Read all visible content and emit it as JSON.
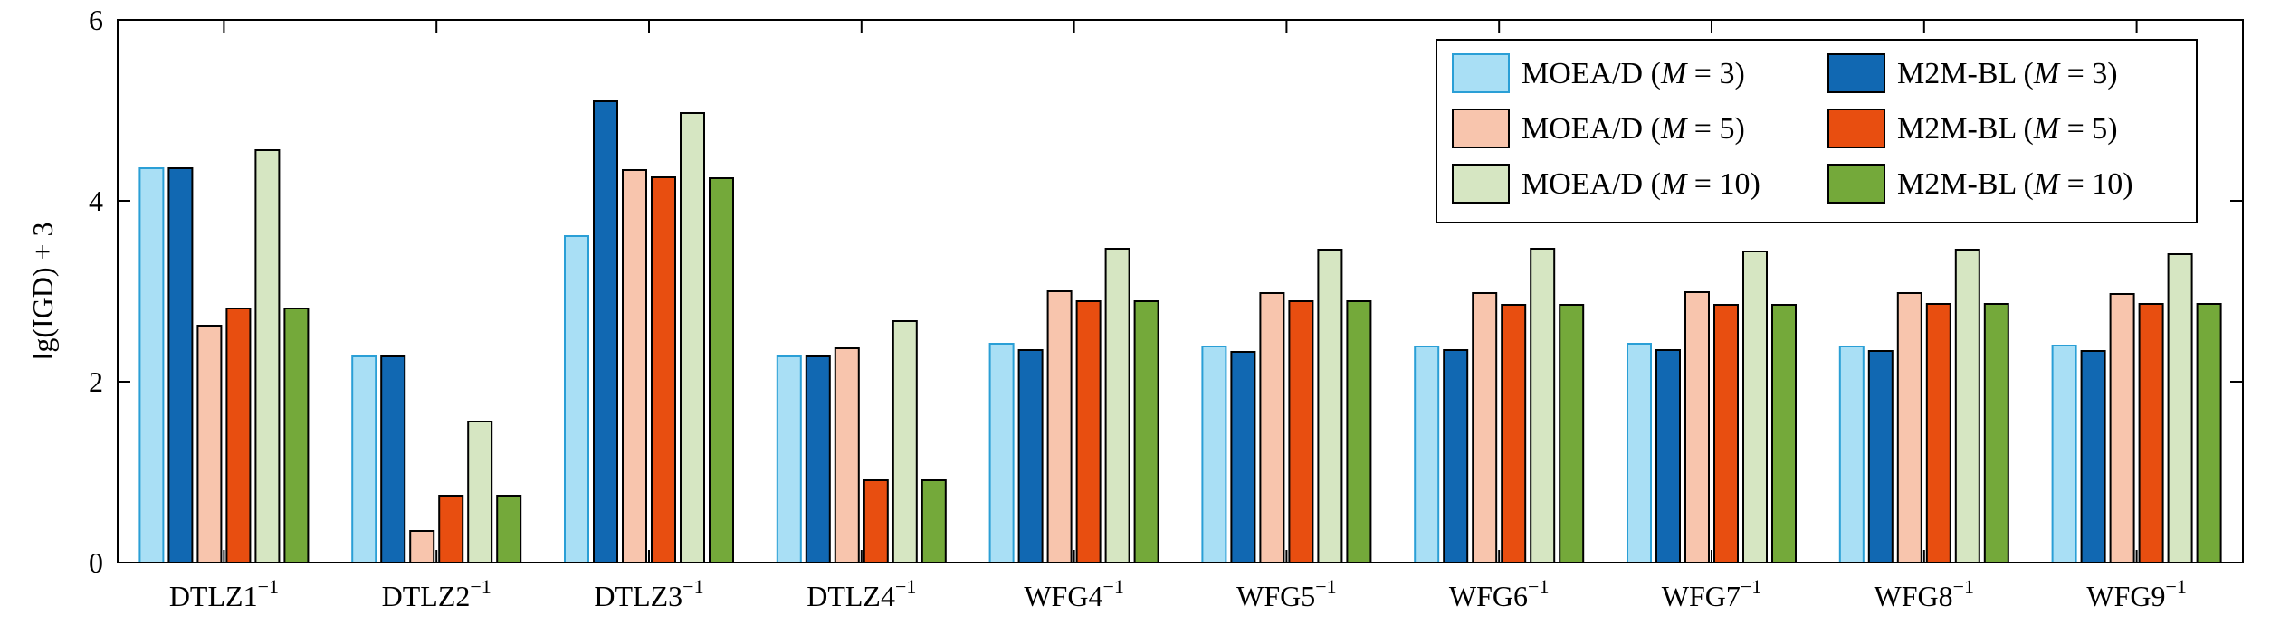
{
  "chart_data": {
    "type": "bar",
    "ylabel": "lg(IGD) + 3",
    "ylim": [
      0,
      6
    ],
    "yticks": [
      0,
      2,
      4,
      6
    ],
    "grid": false,
    "legend_position": "top-right",
    "categories": [
      {
        "base": "DTLZ1",
        "sup": "−1"
      },
      {
        "base": "DTLZ2",
        "sup": "−1"
      },
      {
        "base": "DTLZ3",
        "sup": "−1"
      },
      {
        "base": "DTLZ4",
        "sup": "−1"
      },
      {
        "base": "WFG4",
        "sup": "−1"
      },
      {
        "base": "WFG5",
        "sup": "−1"
      },
      {
        "base": "WFG6",
        "sup": "−1"
      },
      {
        "base": "WFG7",
        "sup": "−1"
      },
      {
        "base": "WFG8",
        "sup": "−1"
      },
      {
        "base": "WFG9",
        "sup": "−1"
      }
    ],
    "series": [
      {
        "name": "MOEA/D (M = 3)",
        "label_parts": [
          "MOEA/D (",
          "M",
          " = 3)"
        ],
        "color": "#a9dff5",
        "stroke": "#2a9fd6",
        "values": [
          4.36,
          2.28,
          3.61,
          2.28,
          2.42,
          2.39,
          2.39,
          2.42,
          2.39,
          2.4
        ]
      },
      {
        "name": "M2M-BL (M = 3)",
        "label_parts": [
          "M2M-BL (",
          "M",
          " = 3)"
        ],
        "color": "#1168b2",
        "stroke": "#000000",
        "values": [
          4.36,
          2.28,
          5.1,
          2.28,
          2.35,
          2.33,
          2.35,
          2.35,
          2.34,
          2.34
        ]
      },
      {
        "name": "MOEA/D (M = 5)",
        "label_parts": [
          "MOEA/D (",
          "M",
          " = 5)"
        ],
        "color": "#f8c5ad",
        "stroke": "#000000",
        "values": [
          2.62,
          0.35,
          4.34,
          2.37,
          3.0,
          2.98,
          2.98,
          2.99,
          2.98,
          2.97
        ]
      },
      {
        "name": "M2M-BL (M = 5)",
        "label_parts": [
          "M2M-BL (",
          "M",
          " = 5)"
        ],
        "color": "#e84e10",
        "stroke": "#000000",
        "values": [
          2.81,
          0.74,
          4.26,
          0.91,
          2.89,
          2.89,
          2.85,
          2.85,
          2.86,
          2.86
        ]
      },
      {
        "name": "MOEA/D (M = 10)",
        "label_parts": [
          "MOEA/D (",
          "M",
          " = 10)"
        ],
        "color": "#d6e6c2",
        "stroke": "#000000",
        "values": [
          4.56,
          1.56,
          4.97,
          2.67,
          3.47,
          3.46,
          3.47,
          3.44,
          3.46,
          3.41
        ]
      },
      {
        "name": "M2M-BL (M = 10)",
        "label_parts": [
          "M2M-BL (",
          "M",
          " = 10)"
        ],
        "color": "#74a93a",
        "stroke": "#000000",
        "values": [
          2.81,
          0.74,
          4.25,
          0.91,
          2.89,
          2.89,
          2.85,
          2.85,
          2.86,
          2.86
        ]
      }
    ]
  }
}
